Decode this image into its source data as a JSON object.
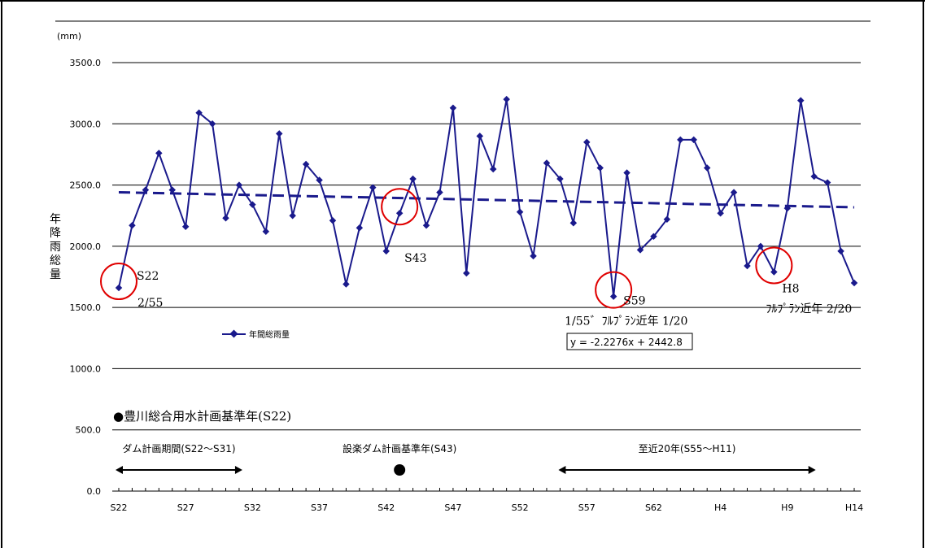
{
  "chart_data": {
    "type": "line",
    "title": "",
    "unit_label": "(mm)",
    "ylabel": "年降雨総量",
    "xlabel": "",
    "ylim": [
      0,
      3500
    ],
    "yticks": [
      "0.0",
      "500.0",
      "1000.0",
      "1500.0",
      "2000.0",
      "2500.0",
      "3000.0",
      "3500.0"
    ],
    "grid": true,
    "categories": [
      "S22",
      "S23",
      "S24",
      "S25",
      "S26",
      "S27",
      "S28",
      "S29",
      "S30",
      "S31",
      "S32",
      "S33",
      "S34",
      "S35",
      "S36",
      "S37",
      "S38",
      "S39",
      "S40",
      "S41",
      "S42",
      "S43",
      "S44",
      "S45",
      "S46",
      "S47",
      "S48",
      "S49",
      "S50",
      "S51",
      "S52",
      "S53",
      "S54",
      "S55",
      "S56",
      "S57",
      "S58",
      "S59",
      "S60",
      "S61",
      "S62",
      "S63",
      "H1",
      "H2",
      "H3",
      "H4",
      "H5",
      "H6",
      "H7",
      "H8",
      "H9",
      "H10",
      "H11",
      "H12",
      "H13",
      "H14"
    ],
    "tick_labels": [
      "S22",
      "S27",
      "S32",
      "S37",
      "S42",
      "S47",
      "S52",
      "S57",
      "S62",
      "H4",
      "H9",
      "H14"
    ],
    "tick_label_indices": [
      0,
      5,
      10,
      15,
      20,
      25,
      30,
      35,
      40,
      45,
      50,
      55
    ],
    "series": [
      {
        "name": "年間総雨量",
        "color": "#1a1a8c",
        "values": [
          1660,
          2170,
          2460,
          2760,
          2460,
          2160,
          3090,
          3000,
          2230,
          2500,
          2340,
          2120,
          2920,
          2250,
          2670,
          2540,
          2210,
          1690,
          2150,
          2480,
          1960,
          2270,
          2550,
          2170,
          2440,
          3130,
          1780,
          2900,
          2630,
          3200,
          2280,
          1920,
          2680,
          2550,
          2190,
          2850,
          2640,
          1590,
          2600,
          1970,
          2080,
          2220,
          2870,
          2870,
          2640,
          2270,
          2440,
          1840,
          2000,
          1790,
          2310,
          3190,
          2570,
          2520,
          1960,
          1700
        ]
      }
    ],
    "trendline": {
      "equation": "y = -2.2276x + 2442.8",
      "slope": -2.2276,
      "intercept": 2442.8,
      "color": "#1a1a8c",
      "style": "dashed"
    },
    "legend": {
      "placement": "left-middle",
      "label": "年間総雨量"
    },
    "highlights": [
      {
        "index": 0,
        "lines": [
          "S22",
          "2/55"
        ]
      },
      {
        "index": 21,
        "lines": [
          "S43"
        ]
      },
      {
        "index": 37,
        "lines": [
          "S59",
          "1/55゛ﾌﾙﾌﾟﾗﾝ近年 1/20"
        ]
      },
      {
        "index": 49,
        "lines": [
          "H8",
          "ﾌﾙﾌﾟﾗﾝ近年 2/20"
        ]
      }
    ],
    "annotations": {
      "plan_base_year": "●豊川総合用水計画基準年(S22)",
      "dam_period": {
        "label": "ダム計画期間(S22～S31)",
        "start_index": 0,
        "end_index": 9
      },
      "shitara_base": {
        "label": "設楽ダム計画基準年(S43)",
        "index": 21
      },
      "recent20": {
        "label": "至近20年(S55～H11)",
        "start_index": 33,
        "end_index": 52
      }
    }
  }
}
